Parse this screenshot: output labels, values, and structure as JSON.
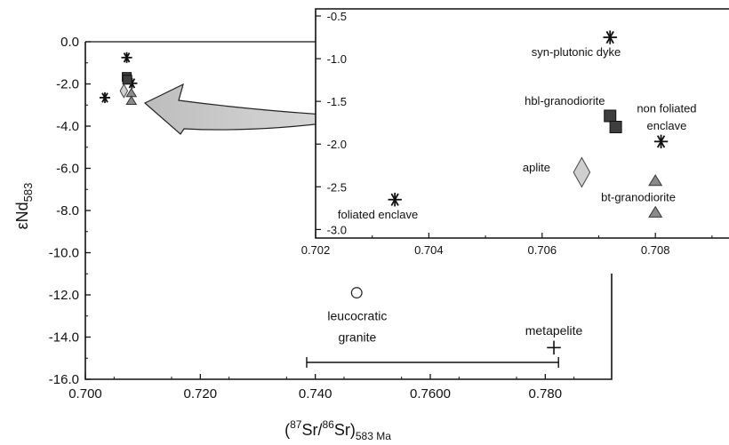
{
  "chart_data": [
    {
      "type": "scatter",
      "xlabel": "(87Sr/86Sr)583 Ma",
      "ylabel": "εNd583",
      "xlim": [
        0.7,
        0.79
      ],
      "ylim": [
        -16.0,
        0.0
      ],
      "xtick_values": [
        0.7,
        0.72,
        0.74,
        0.76,
        0.78
      ],
      "xtick_labels": [
        "0.700",
        "0.720",
        "0.740",
        "0.7600",
        "0.780"
      ],
      "ytick_values": [
        0,
        -2,
        -4,
        -6,
        -8,
        -10,
        -12,
        -14,
        -16
      ],
      "ytick_labels": [
        "0.0",
        "-2.0",
        "-4.0",
        "-6.0",
        "-8.0",
        "-10.0",
        "-12.0",
        "-14.0",
        "-16.0"
      ],
      "points": [
        {
          "group": "syn-plutonic dyke",
          "marker": "asterisk",
          "x": 0.7072,
          "y": -0.75
        },
        {
          "group": "foliated enclave",
          "marker": "asterisk",
          "x": 0.7034,
          "y": -2.65
        },
        {
          "group": "non foliated enclave",
          "marker": "asterisk",
          "x": 0.7081,
          "y": -1.97
        },
        {
          "group": "hbl-granodiorite",
          "marker": "square",
          "x": 0.7072,
          "y": -1.67
        },
        {
          "group": "hbl-granodiorite",
          "marker": "square",
          "x": 0.7073,
          "y": -1.8
        },
        {
          "group": "aplite",
          "marker": "diamond",
          "x": 0.7067,
          "y": -2.33
        },
        {
          "group": "bt-granodiorite",
          "marker": "triangle",
          "x": 0.708,
          "y": -2.43
        },
        {
          "group": "bt-granodiorite",
          "marker": "triangle",
          "x": 0.708,
          "y": -2.8
        },
        {
          "group": "leucocratic granite",
          "marker": "circle",
          "x": 0.7472,
          "y": -11.9
        },
        {
          "group": "metapelite",
          "marker": "plus",
          "x": 0.7815,
          "y": -14.5
        }
      ],
      "annotations": [
        {
          "text": "leucocratic",
          "x": 0.7473,
          "y": -13.2
        },
        {
          "text": "granite",
          "x": 0.7473,
          "y": -14.2
        },
        {
          "text": "metapelite",
          "x": 0.7815,
          "y": -13.9
        }
      ],
      "range_bar": {
        "x_start": 0.7385,
        "x_end": 0.7823,
        "y": -15.2
      }
    },
    {
      "type": "scatter",
      "panel": "inset",
      "xlim": [
        0.702,
        0.7093
      ],
      "ylim": [
        -3.1,
        -0.5
      ],
      "xtick_values": [
        0.702,
        0.704,
        0.706,
        0.708
      ],
      "xtick_labels": [
        "0.702",
        "0.704",
        "0.706",
        "0.708"
      ],
      "ytick_values": [
        -0.5,
        -1.0,
        -1.5,
        -2.0,
        -2.5,
        -3.0
      ],
      "ytick_labels": [
        "-0.5",
        "-1.0",
        "-1.5",
        "-2.0",
        "-2.5",
        "-3.0"
      ],
      "labels": [
        {
          "text": "syn-plutonic dyke",
          "x": 0.7066,
          "y": -0.97
        },
        {
          "text": "hbl-granodiorite",
          "x": 0.7064,
          "y": -1.54
        },
        {
          "text": "non foliated",
          "x": 0.7082,
          "y": -1.63
        },
        {
          "text": "enclave",
          "x": 0.7082,
          "y": -1.83
        },
        {
          "text": "aplite",
          "x": 0.7059,
          "y": -2.32
        },
        {
          "text": "bt-granodiorite",
          "x": 0.7077,
          "y": -2.67
        },
        {
          "text": "foliated enclave",
          "x": 0.7031,
          "y": -2.87
        }
      ]
    }
  ]
}
